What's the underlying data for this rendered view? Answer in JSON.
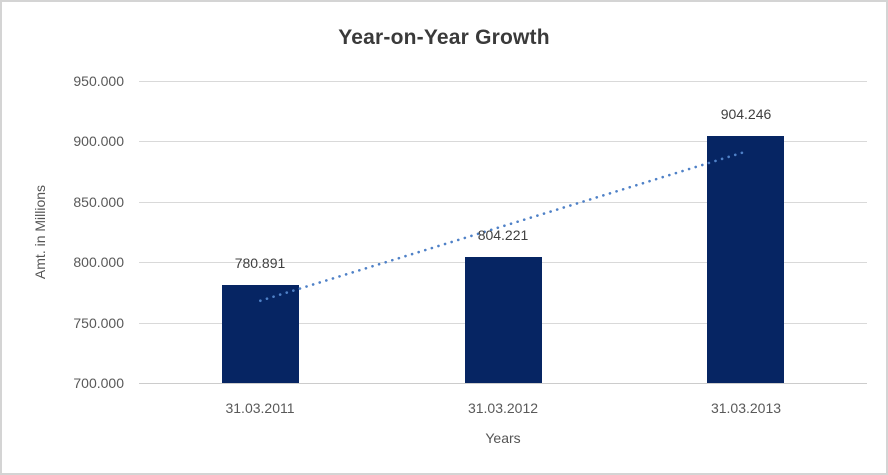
{
  "chart_data": {
    "type": "bar",
    "title": "Year-on-Year Growth",
    "xlabel": "Years",
    "ylabel": "Amt. in Millions",
    "categories": [
      "31.03.2011",
      "31.03.2012",
      "31.03.2013"
    ],
    "values": [
      780.891,
      804.221,
      904.246
    ],
    "data_labels": [
      "780.891",
      "804.221",
      "904.246"
    ],
    "ylim": [
      700,
      950
    ],
    "ytick_step": 50,
    "ytick_labels": [
      "700.000",
      "750.000",
      "800.000",
      "850.000",
      "900.000",
      "950.000"
    ],
    "grid": true,
    "legend": false,
    "trendline": {
      "type": "linear",
      "style": "dotted",
      "start_value": 768.1,
      "end_value": 891.5,
      "color": "#4f81c7"
    },
    "colors": {
      "bar": "#062563",
      "gridline": "#d9d9d9",
      "axis_line": "#cccccc",
      "title_text": "#3a3a3a",
      "tick_text": "#595959",
      "data_label_text": "#404040"
    }
  }
}
